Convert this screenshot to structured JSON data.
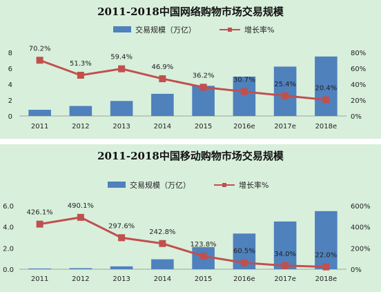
{
  "chart_data": [
    {
      "type": "bar",
      "title": "2011-2018中国网络购物市场交易规模",
      "categories": [
        "2011",
        "2012",
        "2013",
        "2014",
        "2015",
        "2016e",
        "2017e",
        "2018e"
      ],
      "series": [
        {
          "name": "交易规模（万亿）",
          "type": "bar",
          "axis": "left",
          "values": [
            0.78,
            1.26,
            1.89,
            2.79,
            3.8,
            4.96,
            6.22,
            7.49
          ]
        },
        {
          "name": "增长率%",
          "type": "line",
          "axis": "right",
          "values": [
            70.2,
            51.3,
            59.4,
            46.9,
            36.2,
            30.7,
            25.4,
            20.4
          ],
          "labels": [
            "70.2%",
            "51.3%",
            "59.4%",
            "46.9%",
            "36.2%",
            "30.7%",
            "25.4%",
            "20.4%"
          ]
        }
      ],
      "ylim_left": [
        0,
        8
      ],
      "yticks_left": [
        "0",
        "2",
        "4",
        "6",
        "8"
      ],
      "ylim_right": [
        0,
        80
      ],
      "yticks_right": [
        "0%",
        "20%",
        "40%",
        "60%",
        "80%"
      ],
      "legend_position": "top",
      "grid": false,
      "colors": {
        "bar": "#4f81bd",
        "line": "#c0504d",
        "background": "#d8efdc"
      }
    },
    {
      "type": "bar",
      "title": "2011-2018中国移动购物市场交易规模",
      "categories": [
        "2011",
        "2012",
        "2013",
        "2014",
        "2015",
        "2016e",
        "2017e",
        "2018e"
      ],
      "series": [
        {
          "name": "交易规模（万亿）",
          "type": "bar",
          "axis": "left",
          "values": [
            0.07,
            0.1,
            0.27,
            0.94,
            2.09,
            3.37,
            4.51,
            5.49
          ]
        },
        {
          "name": "增长率%",
          "type": "line",
          "axis": "right",
          "values": [
            426.1,
            490.1,
            297.6,
            242.8,
            123.8,
            60.5,
            34.0,
            22.0
          ],
          "labels": [
            "426.1%",
            "490.1%",
            "297.6%",
            "242.8%",
            "123.8%",
            "60.5%",
            "34.0%",
            "22.0%"
          ]
        }
      ],
      "ylim_left": [
        0,
        6
      ],
      "yticks_left": [
        "0.0",
        "2.0",
        "4.0",
        "6.0"
      ],
      "ylim_right": [
        0,
        600
      ],
      "yticks_right": [
        "0%",
        "200%",
        "400%",
        "600%"
      ],
      "legend_position": "top",
      "grid": false,
      "colors": {
        "bar": "#4f81bd",
        "line": "#c0504d",
        "background": "#d8efdc"
      }
    }
  ]
}
